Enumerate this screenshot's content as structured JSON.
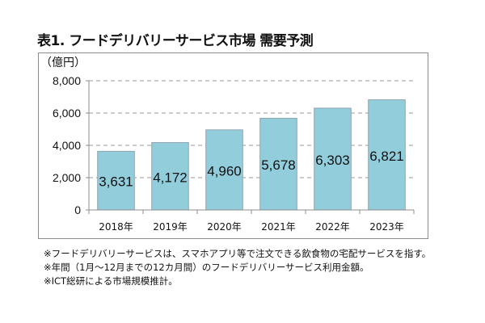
{
  "title": "表1. フードデリバリーサービス市場 需要予測",
  "chart_data": {
    "type": "bar",
    "title": "表1. フードデリバリーサービス市場 需要予測",
    "unit_label": "（億円）",
    "xlabel": "",
    "ylabel": "（億円）",
    "categories": [
      "2018年",
      "2019年",
      "2020年",
      "2021年",
      "2022年",
      "2023年"
    ],
    "values": [
      3631,
      4172,
      4960,
      5678,
      6303,
      6821
    ],
    "value_labels": [
      "3,631",
      "4,172",
      "4,960",
      "5,678",
      "6,303",
      "6,821"
    ],
    "ylim": [
      0,
      8000
    ],
    "yticks": [
      0,
      2000,
      4000,
      6000,
      8000
    ],
    "ytick_labels": [
      "0",
      "2,000",
      "4,000",
      "6,000",
      "8,000"
    ],
    "grid": "dashed-horizontal",
    "legend": "none",
    "colors": {
      "bar_fill": "#92cddc",
      "bar_border": "#8fa3ad",
      "grid": "#9a9a9a",
      "axis": "#8c8c8c"
    }
  },
  "notes": [
    "※フードデリバリーサービスは、スマホアプリ等で注文できる飲食物の宅配サービスを指す。",
    "※年間（1月〜12月までの12カ月間）のフードデリバリーサービス利用金額。",
    "※ICT総研による市場規模推計。"
  ]
}
